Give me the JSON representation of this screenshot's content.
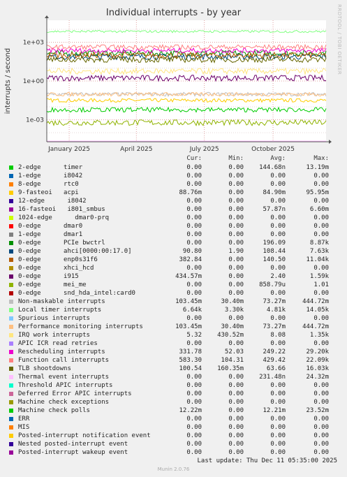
{
  "title": "Individual interrupts - by year",
  "side_label": "RRDTOOL / TOBI OETIKER",
  "footer": "Munin 2.0.76",
  "last_update": "Last update: Thu Dec 11 05:35:00 2025",
  "headers": {
    "cur": "Cur:",
    "min": "Min:",
    "avg": "Avg:",
    "max": "Max:"
  },
  "chart_data": {
    "type": "line",
    "title": "Individual interrupts - by year",
    "ylabel": "interrupts / second",
    "yscale": "log",
    "ylim": [
      2e-05,
      50000
    ],
    "yticks": [
      {
        "value": 0.001,
        "label": "1e-03"
      },
      {
        "value": 1,
        "label": "1e+00"
      },
      {
        "value": 1000,
        "label": "1e+03"
      }
    ],
    "xrange": [
      "2024-12-02",
      "2025-12-11"
    ],
    "xticks": [
      {
        "date": "2025-01-01",
        "label": "January 2025"
      },
      {
        "date": "2025-04-01",
        "label": "April 2025"
      },
      {
        "date": "2025-07-01",
        "label": "July 2025"
      },
      {
        "date": "2025-10-01",
        "label": "October 2025"
      }
    ],
    "grid": true,
    "series": [
      {
        "name": "2-edge      timer",
        "color": "#00cc00",
        "cur": "0.00",
        "min": "0.00",
        "avg": "144.68n",
        "max": "13.19m"
      },
      {
        "name": "1-edge      i8042",
        "color": "#0066b3",
        "cur": "0.00",
        "min": "0.00",
        "avg": "0.00",
        "max": "0.00"
      },
      {
        "name": "8-edge      rtc0",
        "color": "#ff8000",
        "cur": "0.00",
        "min": "0.00",
        "avg": "0.00",
        "max": "0.00"
      },
      {
        "name": "9-fasteoi   acpi",
        "color": "#ffcc00",
        "cur": "88.76m",
        "min": "0.00",
        "avg": "84.90m",
        "max": "95.95m"
      },
      {
        "name": "12-edge      i8042",
        "color": "#330099",
        "cur": "0.00",
        "min": "0.00",
        "avg": "0.00",
        "max": "0.00"
      },
      {
        "name": "16-fasteoi   i801_smbus",
        "color": "#990099",
        "cur": "0.00",
        "min": "0.00",
        "avg": "57.87n",
        "max": "6.60m"
      },
      {
        "name": "1024-edge      dmar0-prq",
        "color": "#ccff00",
        "cur": "0.00",
        "min": "0.00",
        "avg": "0.00",
        "max": "0.00"
      },
      {
        "name": "0-edge      dmar0",
        "color": "#ff0000",
        "cur": "0.00",
        "min": "0.00",
        "avg": "0.00",
        "max": "0.00"
      },
      {
        "name": "1-edge      dmar1",
        "color": "#808080",
        "cur": "0.00",
        "min": "0.00",
        "avg": "0.00",
        "max": "0.00"
      },
      {
        "name": "0-edge      PCIe bwctrl",
        "color": "#008f00",
        "cur": "0.00",
        "min": "0.00",
        "avg": "196.09",
        "max": "8.87k"
      },
      {
        "name": "0-edge      ahci[0000:00:17.0]",
        "color": "#00487d",
        "cur": "90.80",
        "min": "1.90",
        "avg": "108.44",
        "max": "7.63k"
      },
      {
        "name": "0-edge      enp0s31f6",
        "color": "#b35a00",
        "cur": "382.84",
        "min": "0.00",
        "avg": "140.50",
        "max": "11.04k"
      },
      {
        "name": "0-edge      xhci_hcd",
        "color": "#b38f00",
        "cur": "0.00",
        "min": "0.00",
        "avg": "0.00",
        "max": "0.00"
      },
      {
        "name": "0-edge      i915",
        "color": "#6b006b",
        "cur": "434.57m",
        "min": "0.00",
        "avg": "2.40",
        "max": "1.59k"
      },
      {
        "name": "0-edge      mei_me",
        "color": "#8fb300",
        "cur": "0.00",
        "min": "0.00",
        "avg": "858.79u",
        "max": "1.01"
      },
      {
        "name": "0-edge      snd_hda_intel:card0",
        "color": "#b30000",
        "cur": "0.00",
        "min": "0.00",
        "avg": "0.00",
        "max": "0.00"
      },
      {
        "name": "Non-maskable interrupts",
        "color": "#bebebe",
        "cur": "103.45m",
        "min": "30.40m",
        "avg": "73.27m",
        "max": "444.72m"
      },
      {
        "name": "Local timer interrupts",
        "color": "#80ff80",
        "cur": "6.64k",
        "min": "3.30k",
        "avg": "4.81k",
        "max": "14.05k"
      },
      {
        "name": "Spurious interrupts",
        "color": "#80c9ff",
        "cur": "0.00",
        "min": "0.00",
        "avg": "0.00",
        "max": "0.00"
      },
      {
        "name": "Performance monitoring interrupts",
        "color": "#ffc080",
        "cur": "103.45m",
        "min": "30.40m",
        "avg": "73.27m",
        "max": "444.72m"
      },
      {
        "name": "IRQ work interrupts",
        "color": "#ffe680",
        "cur": "5.32",
        "min": "430.52m",
        "avg": "8.08",
        "max": "1.35k"
      },
      {
        "name": "APIC ICR read retries",
        "color": "#aa80ff",
        "cur": "0.00",
        "min": "0.00",
        "avg": "0.00",
        "max": "0.00"
      },
      {
        "name": "Rescheduling interrupts",
        "color": "#ee00cc",
        "cur": "331.78",
        "min": "52.03",
        "avg": "249.22",
        "max": "29.20k"
      },
      {
        "name": "Function call interrupts",
        "color": "#ff8080",
        "cur": "583.30",
        "min": "104.31",
        "avg": "429.42",
        "max": "22.09k"
      },
      {
        "name": "TLB shootdowns",
        "color": "#666600",
        "cur": "100.54",
        "min": "160.35m",
        "avg": "63.66",
        "max": "16.03k"
      },
      {
        "name": "Thermal event interrupts",
        "color": "#ffbfff",
        "cur": "0.00",
        "min": "0.00",
        "avg": "231.48n",
        "max": "24.32m"
      },
      {
        "name": "Threshold APIC interrupts",
        "color": "#00ffcc",
        "cur": "0.00",
        "min": "0.00",
        "avg": "0.00",
        "max": "0.00"
      },
      {
        "name": "Deferred Error APIC interrupts",
        "color": "#cc6699",
        "cur": "0.00",
        "min": "0.00",
        "avg": "0.00",
        "max": "0.00"
      },
      {
        "name": "Machine check exceptions",
        "color": "#999900",
        "cur": "0.00",
        "min": "0.00",
        "avg": "0.00",
        "max": "0.00"
      },
      {
        "name": "Machine check polls",
        "color": "#00cc00",
        "cur": "12.22m",
        "min": "0.00",
        "avg": "12.21m",
        "max": "23.52m"
      },
      {
        "name": "ERR",
        "color": "#0066b3",
        "cur": "0.00",
        "min": "0.00",
        "avg": "0.00",
        "max": "0.00"
      },
      {
        "name": "MIS",
        "color": "#ff8000",
        "cur": "0.00",
        "min": "0.00",
        "avg": "0.00",
        "max": "0.00"
      },
      {
        "name": "Posted-interrupt notification event",
        "color": "#ffcc00",
        "cur": "0.00",
        "min": "0.00",
        "avg": "0.00",
        "max": "0.00"
      },
      {
        "name": "Nested posted-interrupt event",
        "color": "#330099",
        "cur": "0.00",
        "min": "0.00",
        "avg": "0.00",
        "max": "0.00"
      },
      {
        "name": "Posted-interrupt wakeup event",
        "color": "#990099",
        "cur": "0.00",
        "min": "0.00",
        "avg": "0.00",
        "max": "0.00"
      }
    ]
  }
}
